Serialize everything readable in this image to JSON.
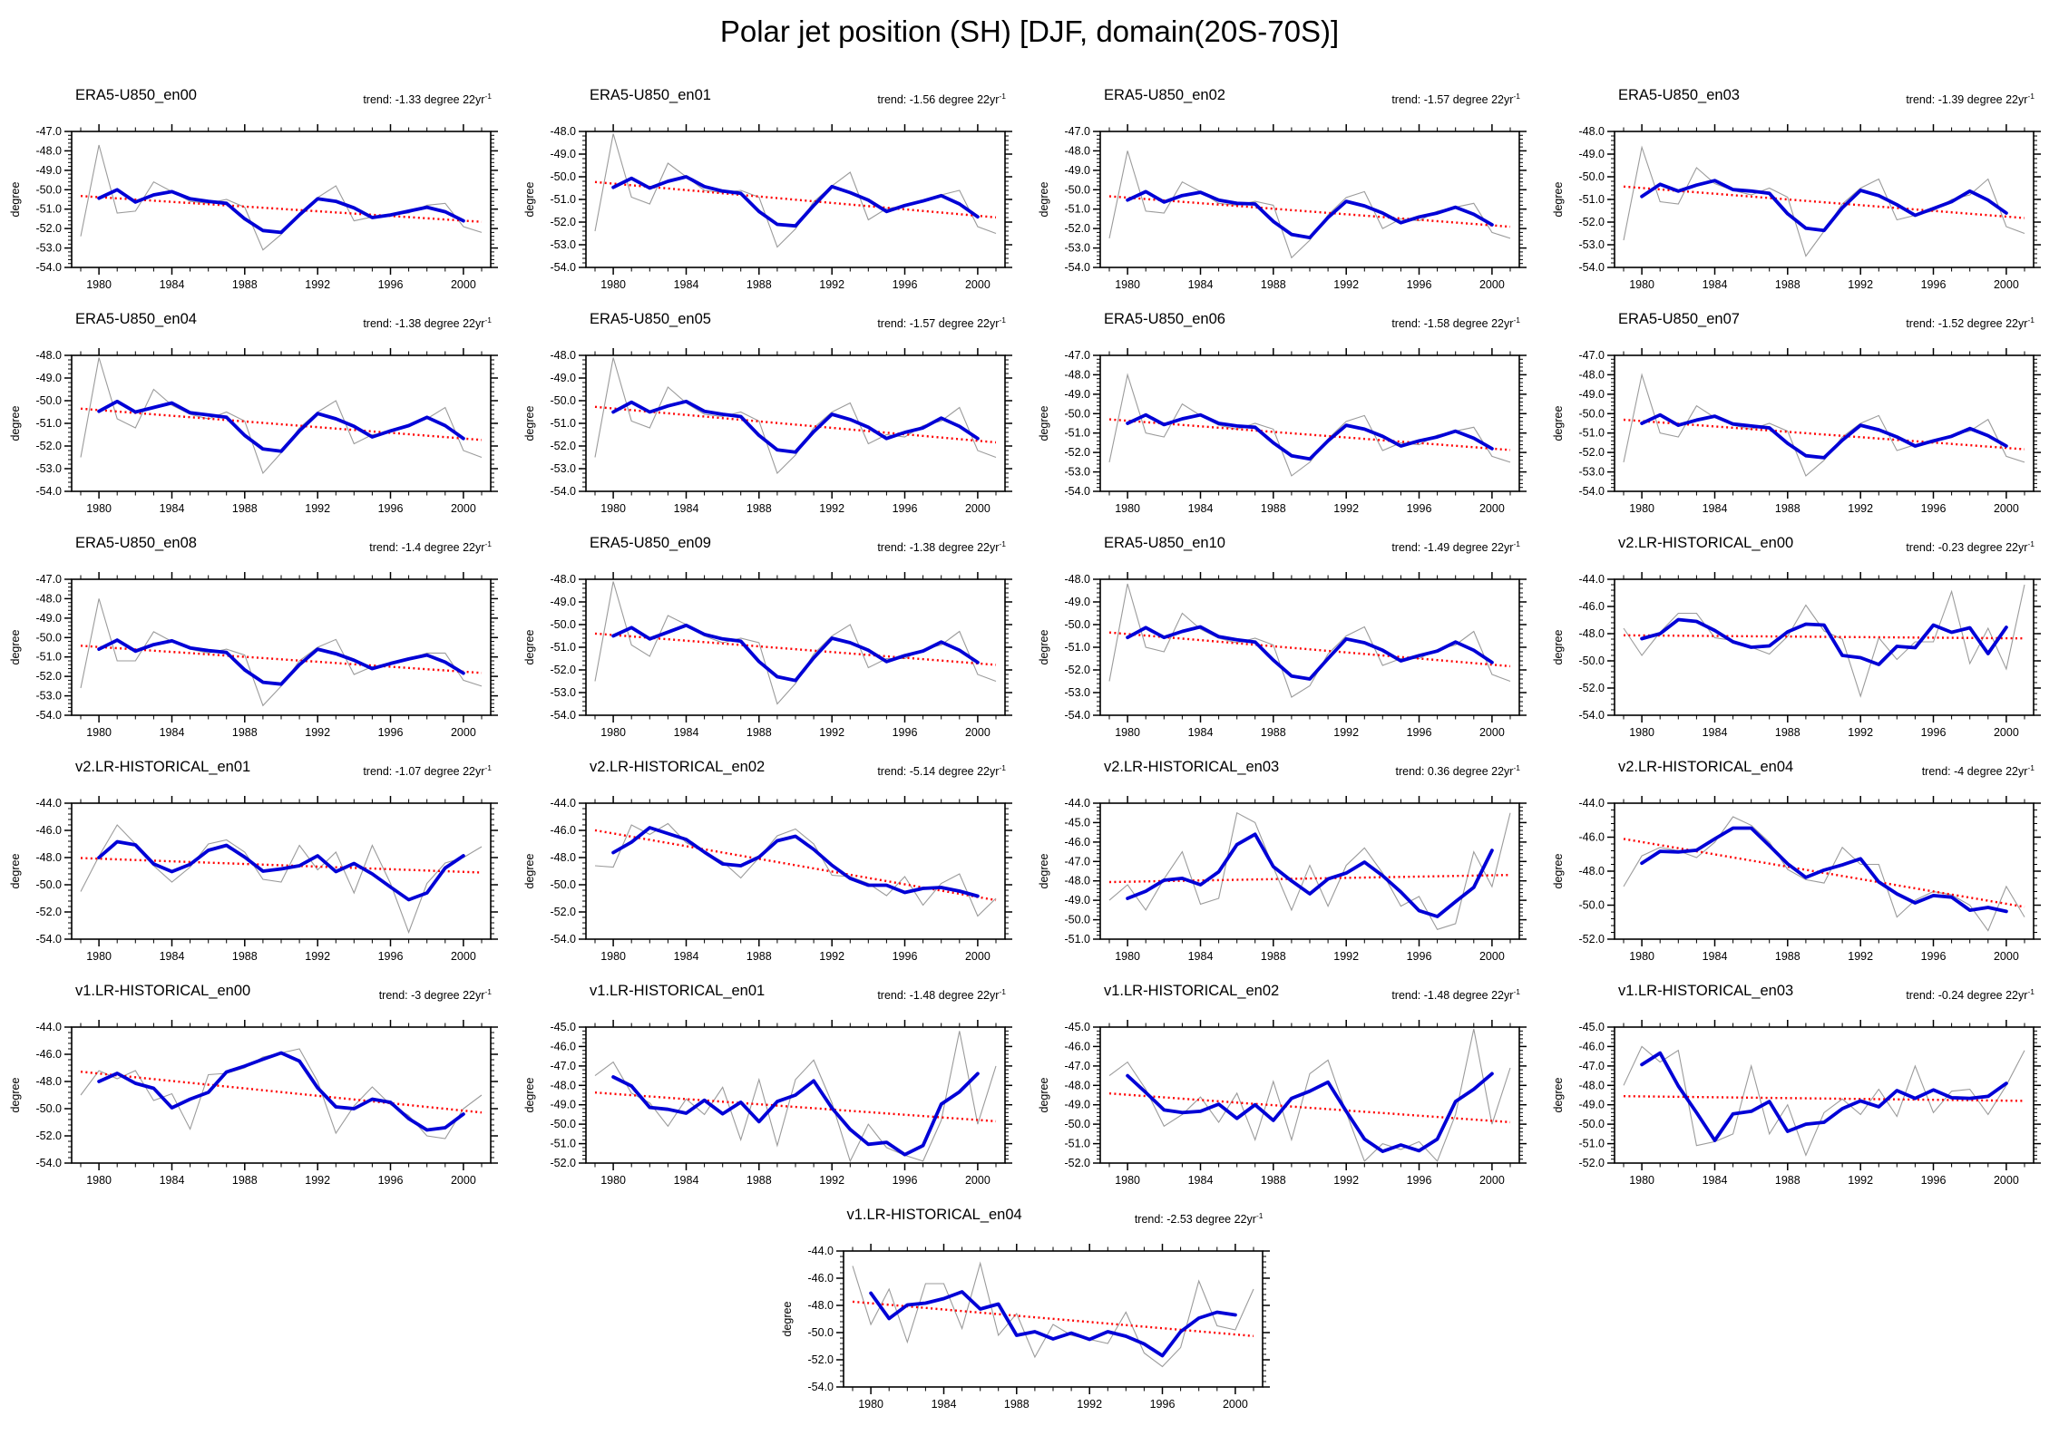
{
  "header": {
    "title": "Polar jet position (SH) [DJF, domain(20S-70S)]"
  },
  "chart_data": {
    "type": "line",
    "title": "Polar jet position (SH) [DJF, domain(20S-70S)]",
    "ylabel": "degree",
    "x_years": [
      1979,
      1980,
      1981,
      1982,
      1983,
      1984,
      1985,
      1986,
      1987,
      1988,
      1989,
      1990,
      1991,
      1992,
      1993,
      1994,
      1995,
      1996,
      1997,
      1998,
      1999,
      2000,
      2001
    ],
    "x_major_ticks": [
      1980,
      1984,
      1988,
      1992,
      1996,
      2000
    ],
    "xlim": [
      1978.5,
      2001.5
    ],
    "trend_sup": "-1",
    "smoothed_window": 3,
    "series_style": {
      "raw_color": "#9b9b9b",
      "smoothed_color": "#0000d6",
      "trend_color": "#ff0000"
    },
    "panels": [
      {
        "title": "ERA5-U850_en00",
        "trend_text": "trend: -1.33 degree 22yr",
        "trend_per_22yr": -1.33,
        "ylim": [
          -54,
          -47
        ],
        "ytick_step": 1,
        "raw": [
          -52.4,
          -47.7,
          -51.2,
          -51.1,
          -49.6,
          -50.1,
          -50.6,
          -50.7,
          -50.5,
          -50.9,
          -53.1,
          -52.3,
          -51.2,
          -50.4,
          -49.8,
          -51.6,
          -51.4,
          -51.3,
          -51.2,
          -50.8,
          -50.7,
          -51.9,
          -52.2
        ]
      },
      {
        "title": "ERA5-U850_en01",
        "trend_text": "trend: -1.56 degree 22yr",
        "trend_per_22yr": -1.56,
        "ylim": [
          -54,
          -48
        ],
        "ytick_step": 1,
        "raw": [
          -52.4,
          -48.1,
          -50.9,
          -51.2,
          -49.4,
          -50.0,
          -50.6,
          -50.7,
          -50.6,
          -50.9,
          -53.1,
          -52.3,
          -51.1,
          -50.4,
          -49.8,
          -51.9,
          -51.4,
          -51.3,
          -51.1,
          -50.8,
          -50.6,
          -52.2,
          -52.5
        ]
      },
      {
        "title": "ERA5-U850_en02",
        "trend_text": "trend: -1.57 degree 22yr",
        "trend_per_22yr": -1.57,
        "ylim": [
          -54,
          -47
        ],
        "ytick_step": 1,
        "raw": [
          -52.5,
          -48.0,
          -51.1,
          -51.2,
          -49.6,
          -50.1,
          -50.7,
          -50.8,
          -50.6,
          -50.8,
          -53.5,
          -52.6,
          -51.3,
          -50.4,
          -50.1,
          -52.0,
          -51.5,
          -51.6,
          -51.1,
          -50.9,
          -50.7,
          -52.2,
          -52.5
        ]
      },
      {
        "title": "ERA5-U850_en03",
        "trend_text": "trend: -1.39 degree 22yr",
        "trend_per_22yr": -1.39,
        "ylim": [
          -54,
          -48
        ],
        "ytick_step": 1,
        "raw": [
          -52.8,
          -48.7,
          -51.1,
          -51.2,
          -49.6,
          -50.3,
          -50.6,
          -50.8,
          -50.5,
          -50.9,
          -53.5,
          -52.4,
          -51.2,
          -50.5,
          -50.1,
          -51.9,
          -51.7,
          -51.5,
          -51.0,
          -50.8,
          -50.1,
          -52.2,
          -52.5
        ]
      },
      {
        "title": "ERA5-U850_en04",
        "trend_text": "trend: -1.38 degree 22yr",
        "trend_per_22yr": -1.38,
        "ylim": [
          -54,
          -48
        ],
        "ytick_step": 1,
        "raw": [
          -52.5,
          -48.1,
          -50.8,
          -51.2,
          -49.5,
          -50.2,
          -50.6,
          -50.8,
          -50.5,
          -50.9,
          -53.2,
          -52.3,
          -51.2,
          -50.5,
          -50.0,
          -51.9,
          -51.5,
          -51.4,
          -51.1,
          -50.8,
          -50.3,
          -52.2,
          -52.5
        ]
      },
      {
        "title": "ERA5-U850_en05",
        "trend_text": "trend: -1.57 degree 22yr",
        "trend_per_22yr": -1.57,
        "ylim": [
          -54,
          -48
        ],
        "ytick_step": 1,
        "raw": [
          -52.5,
          -48.1,
          -50.9,
          -51.2,
          -49.4,
          -50.1,
          -50.6,
          -50.7,
          -50.5,
          -50.9,
          -53.2,
          -52.4,
          -51.2,
          -50.5,
          -50.1,
          -51.9,
          -51.5,
          -51.6,
          -51.1,
          -50.9,
          -50.3,
          -52.2,
          -52.5
        ]
      },
      {
        "title": "ERA5-U850_en06",
        "trend_text": "trend: -1.58 degree 22yr",
        "trend_per_22yr": -1.58,
        "ylim": [
          -54,
          -47
        ],
        "ytick_step": 1,
        "raw": [
          -52.5,
          -48.0,
          -51.0,
          -51.2,
          -49.5,
          -50.1,
          -50.6,
          -50.8,
          -50.5,
          -50.8,
          -53.2,
          -52.5,
          -51.3,
          -50.4,
          -50.1,
          -51.9,
          -51.5,
          -51.6,
          -51.1,
          -50.9,
          -50.7,
          -52.2,
          -52.5
        ]
      },
      {
        "title": "ERA5-U850_en07",
        "trend_text": "trend: -1.52 degree 22yr",
        "trend_per_22yr": -1.52,
        "ylim": [
          -54,
          -47
        ],
        "ytick_step": 1,
        "raw": [
          -52.5,
          -48.0,
          -51.0,
          -51.2,
          -49.6,
          -50.2,
          -50.6,
          -50.8,
          -50.5,
          -50.9,
          -53.2,
          -52.4,
          -51.2,
          -50.5,
          -50.1,
          -51.9,
          -51.6,
          -51.5,
          -51.1,
          -50.9,
          -50.3,
          -52.2,
          -52.5
        ]
      },
      {
        "title": "ERA5-U850_en08",
        "trend_text": "trend: -1.4 degree 22yr",
        "trend_per_22yr": -1.4,
        "ylim": [
          -54,
          -47
        ],
        "ytick_step": 1,
        "raw": [
          -52.6,
          -48.0,
          -51.2,
          -51.2,
          -49.7,
          -50.2,
          -50.6,
          -50.8,
          -50.6,
          -50.9,
          -53.5,
          -52.5,
          -51.2,
          -50.5,
          -50.1,
          -51.9,
          -51.5,
          -51.4,
          -51.1,
          -50.8,
          -50.8,
          -52.2,
          -52.5
        ]
      },
      {
        "title": "ERA5-U850_en09",
        "trend_text": "trend: -1.38 degree 22yr",
        "trend_per_22yr": -1.38,
        "ylim": [
          -54,
          -48
        ],
        "ytick_step": 1,
        "raw": [
          -52.5,
          -48.1,
          -50.9,
          -51.4,
          -49.6,
          -50.0,
          -50.5,
          -50.8,
          -50.6,
          -50.8,
          -53.5,
          -52.6,
          -51.3,
          -50.5,
          -50.0,
          -51.9,
          -51.5,
          -51.5,
          -51.1,
          -50.9,
          -50.3,
          -52.2,
          -52.5
        ]
      },
      {
        "title": "ERA5-U850_en10",
        "trend_text": "trend: -1.49 degree 22yr",
        "trend_per_22yr": -1.49,
        "ylim": [
          -54,
          -48
        ],
        "ytick_step": 1,
        "raw": [
          -52.5,
          -48.2,
          -51.0,
          -51.2,
          -49.5,
          -50.2,
          -50.6,
          -50.8,
          -50.6,
          -50.9,
          -53.2,
          -52.7,
          -51.3,
          -50.5,
          -50.1,
          -51.8,
          -51.5,
          -51.5,
          -51.1,
          -50.9,
          -50.3,
          -52.2,
          -52.5
        ]
      },
      {
        "title": "v2.LR-HISTORICAL_en00",
        "trend_text": "trend: -0.23 degree 22yr",
        "trend_per_22yr": -0.23,
        "ylim": [
          -54,
          -44
        ],
        "ytick_step": 2,
        "raw": [
          -47.6,
          -49.6,
          -47.9,
          -46.5,
          -46.5,
          -48.3,
          -48.5,
          -49.0,
          -49.5,
          -48.2,
          -45.9,
          -47.8,
          -48.4,
          -52.6,
          -48.3,
          -49.9,
          -48.6,
          -48.6,
          -44.9,
          -50.2,
          -47.6,
          -50.6,
          -44.4
        ]
      },
      {
        "title": "v2.LR-HISTORICAL_en01",
        "trend_text": "trend: -1.07 degree 22yr",
        "trend_per_22yr": -1.07,
        "ylim": [
          -54,
          -44
        ],
        "ytick_step": 2,
        "raw": [
          -50.5,
          -47.9,
          -45.6,
          -47.0,
          -48.6,
          -49.8,
          -48.7,
          -47.0,
          -46.7,
          -47.6,
          -49.6,
          -49.8,
          -47.1,
          -48.9,
          -47.6,
          -50.6,
          -47.1,
          -49.9,
          -53.5,
          -49.9,
          -48.4,
          -48.0,
          -47.2
        ]
      },
      {
        "title": "v2.LR-HISTORICAL_en02",
        "trend_text": "trend: -5.14 degree 22yr",
        "trend_per_22yr": -5.14,
        "ylim": [
          -54,
          -44
        ],
        "ytick_step": 2,
        "raw": [
          -48.6,
          -48.7,
          -45.6,
          -46.3,
          -45.5,
          -46.9,
          -47.6,
          -48.3,
          -49.5,
          -48.0,
          -46.4,
          -45.9,
          -47.0,
          -49.3,
          -49.4,
          -49.9,
          -50.8,
          -49.4,
          -51.5,
          -49.9,
          -49.2,
          -52.3,
          -51.0
        ]
      },
      {
        "title": "v2.LR-HISTORICAL_en03",
        "trend_text": "trend: 0.36 degree 22yr",
        "trend_per_22yr": 0.36,
        "ylim": [
          -51,
          -44
        ],
        "ytick_step": 1,
        "raw": [
          -49.0,
          -48.2,
          -49.5,
          -47.9,
          -46.5,
          -49.2,
          -48.9,
          -44.5,
          -45.0,
          -47.3,
          -49.5,
          -47.2,
          -49.3,
          -47.2,
          -46.3,
          -47.6,
          -49.3,
          -48.8,
          -50.5,
          -50.2,
          -46.5,
          -48.3,
          -44.5
        ]
      },
      {
        "title": "v2.LR-HISTORICAL_en04",
        "trend_text": "trend: -4 degree 22yr",
        "trend_per_22yr": -4,
        "ylim": [
          -52,
          -44
        ],
        "ytick_step": 2,
        "raw": [
          -48.9,
          -47.1,
          -46.6,
          -46.8,
          -47.2,
          -46.3,
          -44.8,
          -45.3,
          -46.3,
          -47.9,
          -48.5,
          -48.7,
          -46.6,
          -47.6,
          -47.6,
          -50.7,
          -49.7,
          -49.2,
          -49.4,
          -50.0,
          -51.5,
          -48.9,
          -50.7
        ]
      },
      {
        "title": "v1.LR-HISTORICAL_en00",
        "trend_text": "trend: -3 degree 22yr",
        "trend_per_22yr": -3,
        "ylim": [
          -54,
          -44
        ],
        "ytick_step": 2,
        "raw": [
          -49.0,
          -47.2,
          -47.8,
          -47.2,
          -49.4,
          -48.9,
          -51.5,
          -47.5,
          -47.4,
          -47.0,
          -46.2,
          -45.9,
          -45.6,
          -48.0,
          -51.8,
          -49.8,
          -48.4,
          -49.7,
          -50.5,
          -52.0,
          -52.2,
          -50.0,
          -49.0
        ]
      },
      {
        "title": "v1.LR-HISTORICAL_en01",
        "trend_text": "trend: -1.48 degree 22yr",
        "trend_per_22yr": -1.48,
        "ylim": [
          -52,
          -45
        ],
        "ytick_step": 1,
        "raw": [
          -47.5,
          -46.8,
          -48.4,
          -48.9,
          -50.1,
          -48.7,
          -49.5,
          -48.1,
          -50.8,
          -47.7,
          -51.1,
          -47.7,
          -46.7,
          -48.9,
          -51.9,
          -50.0,
          -51.2,
          -51.6,
          -51.9,
          -49.8,
          -45.2,
          -50.0,
          -47.0
        ]
      },
      {
        "title": "v1.LR-HISTORICAL_en02",
        "trend_text": "trend: -1.48 degree 22yr",
        "trend_per_22yr": -1.48,
        "ylim": [
          -52,
          -45
        ],
        "ytick_step": 1,
        "raw": [
          -47.5,
          -46.8,
          -48.2,
          -50.1,
          -49.5,
          -48.6,
          -49.9,
          -48.4,
          -50.8,
          -47.8,
          -50.8,
          -47.4,
          -46.7,
          -49.4,
          -51.9,
          -51.0,
          -51.3,
          -50.9,
          -51.9,
          -49.5,
          -45.1,
          -50.0,
          -47.1
        ]
      },
      {
        "title": "v1.LR-HISTORICAL_en03",
        "trend_text": "trend: -0.24 degree 22yr",
        "trend_per_22yr": -0.24,
        "ylim": [
          -52,
          -45
        ],
        "ytick_step": 1,
        "raw": [
          -48.0,
          -46.0,
          -46.8,
          -46.2,
          -51.1,
          -50.9,
          -50.5,
          -47.0,
          -50.5,
          -49.0,
          -51.6,
          -49.4,
          -48.7,
          -49.5,
          -48.2,
          -49.6,
          -47.0,
          -49.4,
          -48.3,
          -48.2,
          -49.5,
          -48.0,
          -46.2
        ]
      },
      {
        "title": "v1.LR-HISTORICAL_en04",
        "trend_text": "trend: -2.53 degree 22yr",
        "trend_per_22yr": -2.53,
        "ylim": [
          -54,
          -44
        ],
        "ytick_step": 2,
        "raw": [
          -45.1,
          -49.4,
          -46.8,
          -50.7,
          -46.4,
          -46.4,
          -49.7,
          -44.9,
          -50.2,
          -48.6,
          -51.8,
          -49.4,
          -50.2,
          -50.5,
          -50.8,
          -48.5,
          -51.5,
          -52.5,
          -51.1,
          -46.2,
          -49.5,
          -49.8,
          -46.8
        ]
      }
    ]
  }
}
